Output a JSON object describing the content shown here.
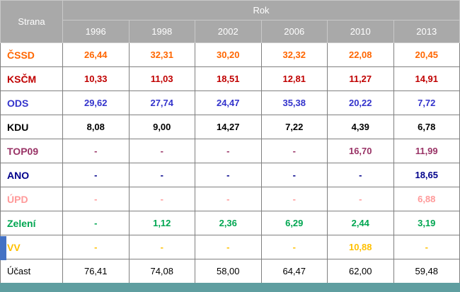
{
  "decor": {
    "left_marker_color": "#4472c4",
    "bottom_bar_color": "#5f9ea0",
    "header_background": "#a9a9a9",
    "header_text_color": "#ffffff"
  },
  "chart_data": {
    "type": "table",
    "row_header": "Strana",
    "column_group": "Rok",
    "columns": [
      "1996",
      "1998",
      "2002",
      "2006",
      "2010",
      "2013"
    ],
    "rows": [
      {
        "name": "ČSSD",
        "color": "#ff6600",
        "bold": true,
        "values": [
          "26,44",
          "32,31",
          "30,20",
          "32,32",
          "22,08",
          "20,45"
        ]
      },
      {
        "name": "KSČM",
        "color": "#c00000",
        "bold": true,
        "values": [
          "10,33",
          "11,03",
          "18,51",
          "12,81",
          "11,27",
          "14,91"
        ]
      },
      {
        "name": "ODS",
        "color": "#3333cc",
        "bold": true,
        "values": [
          "29,62",
          "27,74",
          "24,47",
          "35,38",
          "20,22",
          "7,72"
        ]
      },
      {
        "name": "KDU",
        "color": "#000000",
        "bold": true,
        "values": [
          "8,08",
          "9,00",
          "14,27",
          "7,22",
          "4,39",
          "6,78"
        ]
      },
      {
        "name": "TOP09",
        "color": "#993366",
        "bold": true,
        "values": [
          "-",
          "-",
          "-",
          "-",
          "16,70",
          "11,99"
        ]
      },
      {
        "name": "ANO",
        "color": "#00008b",
        "bold": true,
        "values": [
          "-",
          "-",
          "-",
          "-",
          "-",
          "18,65"
        ]
      },
      {
        "name": "ÚPD",
        "color": "#ff9999",
        "bold": true,
        "values": [
          "-",
          "-",
          "-",
          "-",
          "-",
          "6,88"
        ]
      },
      {
        "name": "Zelení",
        "color": "#00a651",
        "bold": true,
        "values": [
          "-",
          "1,12",
          "2,36",
          "6,29",
          "2,44",
          "3,19"
        ]
      },
      {
        "name": "VV",
        "color": "#ffc000",
        "bold": true,
        "values": [
          "-",
          "-",
          "-",
          "-",
          "10,88",
          "-"
        ]
      },
      {
        "name": "Účast",
        "color": "#000000",
        "bold": false,
        "values": [
          "76,41",
          "74,08",
          "58,00",
          "64,47",
          "62,00",
          "59,48"
        ]
      }
    ]
  }
}
